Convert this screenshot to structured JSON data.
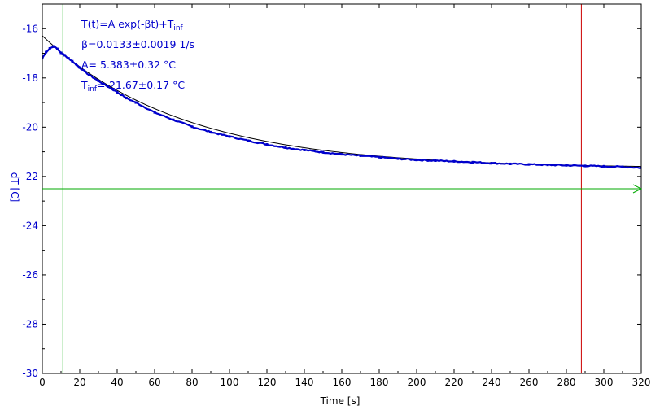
{
  "chart_data": {
    "type": "scatter",
    "xlabel": "Time [s]",
    "ylabel": "dT [C]",
    "xlim": [
      0,
      320
    ],
    "ylim": [
      -30,
      -15
    ],
    "x_ticks": [
      0,
      20,
      40,
      60,
      80,
      100,
      120,
      140,
      160,
      180,
      200,
      220,
      240,
      260,
      280,
      300,
      320
    ],
    "y_ticks": [
      -30,
      -28,
      -26,
      -24,
      -22,
      -20,
      -18,
      -16
    ],
    "x_tick_labels": [
      "0",
      "20",
      "40",
      "60",
      "80",
      "100",
      "120",
      "140",
      "160",
      "180",
      "200",
      "220",
      "240",
      "260",
      "280",
      "300",
      "320"
    ],
    "y_tick_labels": [
      "-30",
      "-28",
      "-26",
      "-24",
      "-22",
      "-20",
      "-18",
      "-16"
    ],
    "grid": false,
    "annotations": [
      {
        "main": "T(t)=A exp(-βt)+T",
        "sub": "inf"
      },
      {
        "main": "β=0.0133±0.0019 1/s",
        "sub": ""
      },
      {
        "main": "A= 5.383±0.32 °C",
        "sub": ""
      },
      {
        "main": "T",
        "sub": "inf",
        "tail": "=-21.67±0.17 °C"
      }
    ],
    "fit": {
      "A": 5.383,
      "beta": 0.0133,
      "T_inf": -21.67,
      "x_range": [
        -1,
        320
      ]
    },
    "measured_series": {
      "color": "#0000cc",
      "x": [
        0,
        2,
        4,
        6,
        8,
        10,
        12,
        14,
        16,
        18,
        20,
        25,
        30,
        35,
        40,
        45,
        50,
        60,
        70,
        80,
        90,
        100,
        110,
        120,
        130,
        140,
        150,
        160,
        170,
        180,
        190,
        200,
        210,
        220,
        230,
        240,
        250,
        260,
        270,
        280,
        290,
        300,
        310,
        320
      ],
      "y": [
        -17.2,
        -16.95,
        -16.8,
        -16.72,
        -16.82,
        -16.98,
        -17.08,
        -17.2,
        -17.32,
        -17.44,
        -17.58,
        -17.88,
        -18.12,
        -18.35,
        -18.58,
        -18.82,
        -19.0,
        -19.4,
        -19.7,
        -19.98,
        -20.2,
        -20.38,
        -20.55,
        -20.7,
        -20.83,
        -20.93,
        -21.02,
        -21.1,
        -21.16,
        -21.22,
        -21.28,
        -21.33,
        -21.36,
        -21.39,
        -21.42,
        -21.46,
        -21.49,
        -21.51,
        -21.53,
        -21.55,
        -21.57,
        -21.59,
        -21.61,
        -21.65
      ]
    },
    "markers": {
      "vertical_green_x": 11,
      "vertical_red_x": 288,
      "horizontal_green_y": -22.5
    },
    "colors": {
      "axis_label": "#0000cc",
      "tick_label_y": "#0000cc",
      "tick_label_x": "#000000",
      "fit_line": "#000000",
      "green_marker": "#00aa00",
      "red_marker": "#cc0000",
      "annotation": "#0000cc"
    }
  }
}
